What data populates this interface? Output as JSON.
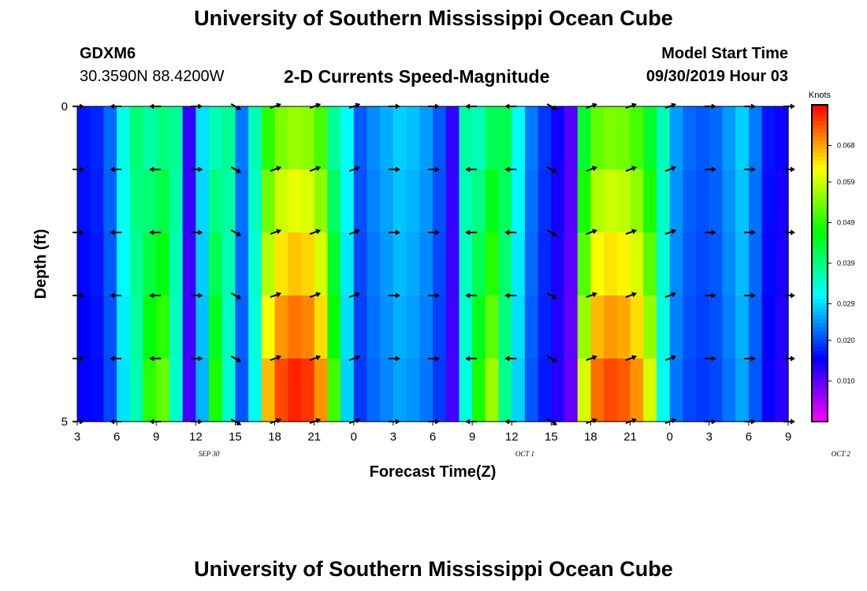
{
  "header": {
    "title": "University of Southern Mississippi Ocean Cube",
    "station_id": "GDXM6",
    "coordinates": "30.3590N 88.4200W",
    "chart_title": "2-D Currents Speed-Magnitude",
    "start_label": "Model Start Time",
    "start_value": "09/30/2019 Hour 03"
  },
  "footer": {
    "title": "University of Southern Mississippi Ocean Cube"
  },
  "chart_data": {
    "type": "heatmap",
    "title": "2-D Currents Speed-Magnitude",
    "xlabel": "Forecast Time(Z)",
    "ylabel": "Depth (ft)",
    "x_tick_labels": [
      "3",
      "6",
      "9",
      "12",
      "15",
      "18",
      "21",
      "0",
      "3",
      "6",
      "9",
      "12",
      "15",
      "18",
      "21",
      "0",
      "3",
      "6",
      "9"
    ],
    "date_labels": [
      {
        "text": "SEP 30",
        "at_hour": 13
      },
      {
        "text": "OCT 1",
        "at_hour": 37
      },
      {
        "text": "OCT 2",
        "at_hour": 61
      }
    ],
    "x_range_hours": [
      3,
      57
    ],
    "y_tick_labels": [
      "0",
      "5"
    ],
    "ylim": [
      0,
      5
    ],
    "colorbar": {
      "label": "Knots",
      "range": [
        0.0,
        0.078
      ],
      "tick_labels": [
        "0.068",
        "0.059",
        "0.049",
        "0.039",
        "0.029",
        "0.020",
        "0.010"
      ],
      "tick_values": [
        0.068,
        0.059,
        0.049,
        0.039,
        0.029,
        0.02,
        0.01
      ],
      "colors": [
        "#ff00ff",
        "#8000ff",
        "#0000ff",
        "#0080ff",
        "#00ffff",
        "#00ff80",
        "#00ff00",
        "#80ff00",
        "#ffff00",
        "#ff8000",
        "#ff0000"
      ]
    },
    "depth_rows": [
      0,
      1,
      2,
      3,
      4,
      5
    ],
    "time_speed_profile": [
      [
        3,
        0.016
      ],
      [
        4,
        0.017
      ],
      [
        5,
        0.021
      ],
      [
        6,
        0.031
      ],
      [
        7,
        0.038
      ],
      [
        8,
        0.043
      ],
      [
        9,
        0.046
      ],
      [
        10,
        0.036
      ],
      [
        11,
        0.012
      ],
      [
        12,
        0.028
      ],
      [
        13,
        0.042
      ],
      [
        14,
        0.036
      ],
      [
        15,
        0.022
      ],
      [
        16,
        0.034
      ],
      [
        17,
        0.058
      ],
      [
        18,
        0.064
      ],
      [
        19,
        0.066
      ],
      [
        20,
        0.065
      ],
      [
        21,
        0.06
      ],
      [
        22,
        0.044
      ],
      [
        23,
        0.03
      ],
      [
        24,
        0.02
      ],
      [
        25,
        0.023
      ],
      [
        26,
        0.025
      ],
      [
        27,
        0.027
      ],
      [
        28,
        0.026
      ],
      [
        29,
        0.024
      ],
      [
        30,
        0.02
      ],
      [
        31,
        0.012
      ],
      [
        32,
        0.035
      ],
      [
        33,
        0.042
      ],
      [
        34,
        0.049
      ],
      [
        35,
        0.04
      ],
      [
        36,
        0.03
      ],
      [
        37,
        0.022
      ],
      [
        38,
        0.018
      ],
      [
        39,
        0.014
      ],
      [
        40,
        0.01
      ],
      [
        41,
        0.052
      ],
      [
        42,
        0.062
      ],
      [
        43,
        0.064
      ],
      [
        44,
        0.063
      ],
      [
        45,
        0.06
      ],
      [
        46,
        0.052
      ],
      [
        47,
        0.034
      ],
      [
        48,
        0.024
      ],
      [
        49,
        0.021
      ],
      [
        50,
        0.02
      ],
      [
        51,
        0.021
      ],
      [
        52,
        0.024
      ],
      [
        53,
        0.027
      ],
      [
        54,
        0.022
      ],
      [
        55,
        0.016
      ],
      [
        56,
        0.014
      ],
      [
        57,
        0.022
      ]
    ],
    "vector_hours": [
      3,
      6,
      9,
      12,
      15,
      18,
      21,
      24,
      27,
      30,
      33,
      36,
      39,
      42,
      45,
      48,
      51,
      54,
      57
    ],
    "vector_directions_deg": [
      0,
      180,
      180,
      0,
      330,
      20,
      20,
      20,
      0,
      0,
      180,
      180,
      330,
      20,
      20,
      20,
      0,
      0,
      0
    ]
  }
}
